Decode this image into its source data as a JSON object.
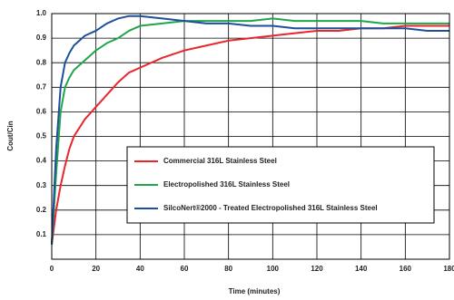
{
  "chart_data": {
    "type": "line",
    "xlabel": "Time (minutes)",
    "ylabel": "Cout/Cin",
    "x": [
      0,
      2,
      4,
      6,
      8,
      10,
      15,
      20,
      25,
      30,
      35,
      40,
      50,
      60,
      70,
      80,
      90,
      100,
      110,
      120,
      130,
      140,
      150,
      160,
      170,
      180
    ],
    "series": [
      {
        "name": "Commercial 316L Stainless Steel",
        "color": "#e8262c",
        "values": [
          0.06,
          0.2,
          0.3,
          0.38,
          0.45,
          0.5,
          0.57,
          0.62,
          0.67,
          0.72,
          0.76,
          0.78,
          0.82,
          0.85,
          0.87,
          0.89,
          0.9,
          0.91,
          0.92,
          0.93,
          0.93,
          0.94,
          0.94,
          0.95,
          0.95,
          0.95
        ]
      },
      {
        "name": "Electropolished 316L Stainless Steel",
        "color": "#1fa64a",
        "values": [
          0.06,
          0.35,
          0.6,
          0.7,
          0.74,
          0.77,
          0.81,
          0.85,
          0.88,
          0.9,
          0.93,
          0.95,
          0.96,
          0.97,
          0.97,
          0.97,
          0.97,
          0.98,
          0.97,
          0.97,
          0.97,
          0.97,
          0.96,
          0.96,
          0.96,
          0.96
        ]
      },
      {
        "name": "SilcoNert®2000 - Treated Electropolished 316L Stainless Steel",
        "color": "#1f4e9c",
        "values": [
          0.06,
          0.45,
          0.7,
          0.8,
          0.84,
          0.87,
          0.91,
          0.93,
          0.96,
          0.98,
          0.99,
          0.99,
          0.98,
          0.97,
          0.96,
          0.96,
          0.95,
          0.95,
          0.94,
          0.94,
          0.94,
          0.94,
          0.94,
          0.94,
          0.93,
          0.93
        ]
      }
    ],
    "xlim": [
      0,
      180
    ],
    "xticks": [
      0,
      20,
      40,
      60,
      80,
      100,
      120,
      140,
      160,
      180
    ],
    "ylim": [
      0,
      1
    ],
    "yticks": [
      0.1,
      0.2,
      0.3,
      0.4,
      0.5,
      0.6,
      0.7,
      0.8,
      0.9,
      {
        "value": 1,
        "label": "1.0"
      }
    ],
    "grid": true,
    "legend": "center"
  }
}
